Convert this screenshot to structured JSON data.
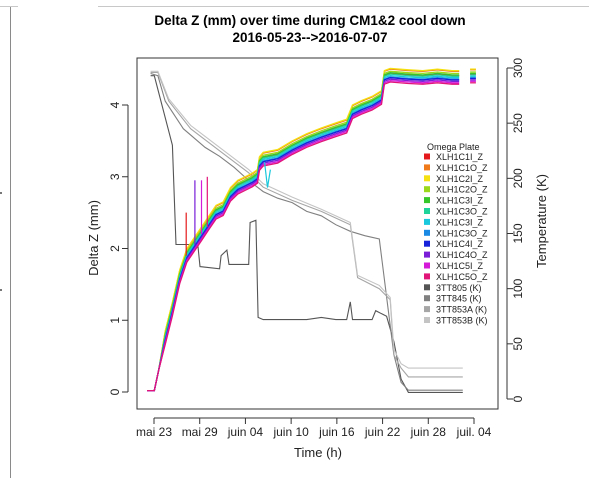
{
  "chart_data": {
    "type": "line",
    "title": "Delta Z (mm) over time during CM1&2 cool down",
    "subtitle": "2016-05-23-->2016-07-07",
    "xlabel": "Time (h)",
    "ylabel": "Delta Z (mm)",
    "y2label": "Temperature (K)",
    "x_ticks": [
      "mai 23",
      "mai 29",
      "juin 04",
      "juin 10",
      "juin 16",
      "juin 22",
      "juin 28",
      "juil. 04"
    ],
    "x_range_days": [
      0,
      46
    ],
    "ylim": [
      0,
      4.5
    ],
    "y_ticks": [
      0,
      1,
      2,
      3,
      4
    ],
    "y2lim": [
      0,
      300
    ],
    "y2_ticks": [
      0,
      50,
      100,
      150,
      200,
      250,
      300
    ],
    "legend_title": "Omega Plate",
    "legend_position": "right",
    "grid": false,
    "delta_series": [
      {
        "name": "XLH1C1I_Z",
        "color": "#e4191c",
        "offset": 0.03
      },
      {
        "name": "XLH1C1O_Z",
        "color": "#f07a1a",
        "offset": 0.09
      },
      {
        "name": "XLH1C2I_Z",
        "color": "#f5e012",
        "offset": 0.1
      },
      {
        "name": "XLH1C2O_Z",
        "color": "#9bd81c",
        "offset": 0.06
      },
      {
        "name": "XLH1C3I_Z",
        "color": "#36c82a",
        "offset": 0.04
      },
      {
        "name": "XLH1C3O_Z",
        "color": "#1fd49a",
        "offset": 0.02
      },
      {
        "name": "XLH1C3I_Z",
        "color": "#19c8dc",
        "offset": 0.0
      },
      {
        "name": "XLH1C3O_Z",
        "color": "#1a8ae4",
        "offset": -0.02
      },
      {
        "name": "XLH1C4I_Z",
        "color": "#1522d9",
        "offset": -0.03
      },
      {
        "name": "XLH1C4O_Z",
        "color": "#7a1ed8",
        "offset": -0.05
      },
      {
        "name": "XLH1C5I_Z",
        "color": "#d51ad9",
        "offset": -0.07
      },
      {
        "name": "XLH1C5O_Z",
        "color": "#e11478",
        "offset": -0.09
      }
    ],
    "delta_base": [
      [
        0.0,
        0.02
      ],
      [
        1.0,
        0.02
      ],
      [
        1.6,
        0.3
      ],
      [
        2.5,
        0.75
      ],
      [
        3.5,
        1.15
      ],
      [
        4.5,
        1.6
      ],
      [
        5.5,
        1.9
      ],
      [
        6.5,
        2.05
      ],
      [
        7.5,
        2.2
      ],
      [
        8.5,
        2.35
      ],
      [
        9.5,
        2.5
      ],
      [
        10.5,
        2.55
      ],
      [
        11.5,
        2.75
      ],
      [
        12.5,
        2.85
      ],
      [
        13.5,
        2.9
      ],
      [
        14.5,
        2.95
      ],
      [
        15.2,
        3.0
      ],
      [
        15.5,
        3.18
      ],
      [
        16.0,
        3.24
      ],
      [
        18.0,
        3.28
      ],
      [
        20.0,
        3.4
      ],
      [
        22.0,
        3.5
      ],
      [
        24.0,
        3.58
      ],
      [
        26.0,
        3.65
      ],
      [
        27.5,
        3.7
      ],
      [
        28.3,
        3.9
      ],
      [
        29.5,
        3.96
      ],
      [
        31.0,
        4.02
      ],
      [
        32.3,
        4.1
      ],
      [
        32.7,
        4.38
      ],
      [
        33.5,
        4.41
      ],
      [
        36.0,
        4.39
      ],
      [
        38.0,
        4.38
      ],
      [
        40.0,
        4.4
      ],
      [
        42.0,
        4.38
      ],
      [
        43.0,
        4.38
      ]
    ],
    "delta_segment2": [
      [
        44.5,
        4.4
      ],
      [
        45.3,
        4.4
      ]
    ],
    "temperature_series": [
      {
        "name": "3TT805 (K)",
        "color": "#555555",
        "points": [
          [
            0.5,
            293
          ],
          [
            1.0,
            293
          ],
          [
            3.5,
            230
          ],
          [
            4.0,
            140
          ],
          [
            7.0,
            140
          ],
          [
            7.3,
            120
          ],
          [
            10.0,
            118
          ],
          [
            10.2,
            130
          ],
          [
            11.0,
            135
          ],
          [
            11.3,
            122
          ],
          [
            14.0,
            122
          ],
          [
            14.2,
            160
          ],
          [
            15.0,
            162
          ],
          [
            15.3,
            74
          ],
          [
            16.0,
            72
          ],
          [
            22.0,
            72
          ],
          [
            24.0,
            74
          ],
          [
            26.0,
            72
          ],
          [
            27.5,
            72
          ],
          [
            28.0,
            88
          ],
          [
            28.3,
            72
          ],
          [
            31.0,
            72
          ],
          [
            31.5,
            80
          ],
          [
            33.0,
            75
          ],
          [
            34.0,
            52
          ],
          [
            35.0,
            18
          ],
          [
            36.0,
            6
          ],
          [
            38.0,
            6
          ],
          [
            41.0,
            6
          ],
          [
            43.5,
            6
          ]
        ]
      },
      {
        "name": "3TT845 (K)",
        "color": "#808080",
        "points": [
          [
            0.5,
            295
          ],
          [
            1.5,
            293
          ],
          [
            2.5,
            270
          ],
          [
            5.0,
            245
          ],
          [
            8.0,
            228
          ],
          [
            10.0,
            220
          ],
          [
            12.0,
            210
          ],
          [
            14.0,
            198
          ],
          [
            16.0,
            188
          ],
          [
            18.0,
            182
          ],
          [
            20.0,
            178
          ],
          [
            22.0,
            170
          ],
          [
            24.0,
            166
          ],
          [
            26.0,
            158
          ],
          [
            28.0,
            152
          ],
          [
            30.0,
            148
          ],
          [
            32.0,
            145
          ],
          [
            34.0,
            40
          ],
          [
            35.0,
            15
          ],
          [
            36.0,
            8
          ],
          [
            43.5,
            8
          ]
        ]
      },
      {
        "name": "3TT853A (K)",
        "color": "#a6a6a6",
        "points": [
          [
            0.5,
            296
          ],
          [
            1.5,
            296
          ],
          [
            3.0,
            270
          ],
          [
            6.0,
            245
          ],
          [
            10.0,
            225
          ],
          [
            14.0,
            205
          ],
          [
            16.0,
            192
          ],
          [
            20.0,
            180
          ],
          [
            24.0,
            170
          ],
          [
            28.0,
            158
          ],
          [
            29.0,
            110
          ],
          [
            32.0,
            100
          ],
          [
            33.5,
            90
          ],
          [
            34.0,
            40
          ],
          [
            35.0,
            28
          ],
          [
            36.0,
            20
          ],
          [
            43.5,
            20
          ]
        ]
      },
      {
        "name": "3TT853B (K)",
        "color": "#c4c4c4",
        "points": [
          [
            0.5,
            297
          ],
          [
            1.5,
            297
          ],
          [
            3.0,
            272
          ],
          [
            6.0,
            248
          ],
          [
            10.0,
            228
          ],
          [
            14.0,
            208
          ],
          [
            16.0,
            195
          ],
          [
            20.0,
            183
          ],
          [
            24.0,
            172
          ],
          [
            28.0,
            160
          ],
          [
            29.0,
            112
          ],
          [
            32.0,
            103
          ],
          [
            33.5,
            92
          ],
          [
            34.0,
            45
          ],
          [
            35.0,
            32
          ],
          [
            36.0,
            28
          ],
          [
            43.5,
            28
          ]
        ]
      }
    ],
    "spikes": [
      {
        "color": "#7a1ed8",
        "points": [
          [
            6.6,
            2.05
          ],
          [
            6.6,
            2.95
          ]
        ]
      },
      {
        "color": "#d51ad9",
        "points": [
          [
            7.5,
            2.2
          ],
          [
            7.5,
            2.95
          ]
        ]
      },
      {
        "color": "#e11478",
        "points": [
          [
            8.3,
            2.3
          ],
          [
            8.3,
            3.0
          ]
        ]
      },
      {
        "color": "#e4191c",
        "points": [
          [
            5.4,
            1.9
          ],
          [
            5.4,
            2.5
          ]
        ]
      },
      {
        "color": "#19c8dc",
        "points": [
          [
            16.2,
            3.2
          ],
          [
            16.6,
            2.85
          ],
          [
            17.0,
            3.1
          ]
        ]
      }
    ]
  }
}
